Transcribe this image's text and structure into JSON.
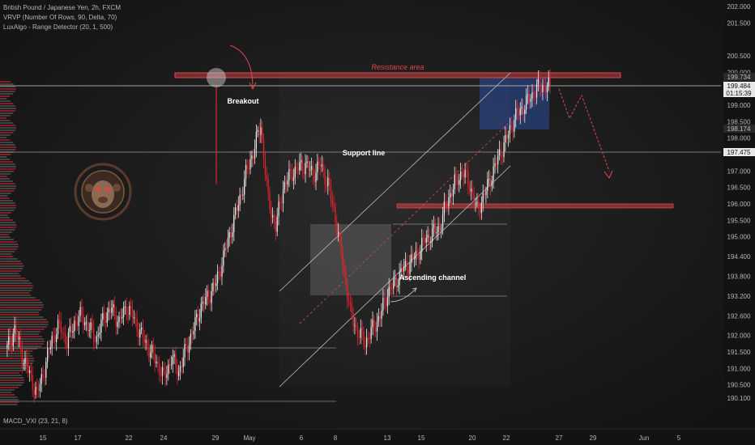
{
  "legend": {
    "line1": "British Pound / Japanese Yen, 2h, FXCM",
    "line2": "VRVP (Number Of Rows, 90, Delta, 70)",
    "line3": "LuxAlgo - Range Detector (20, 1, 500)"
  },
  "macd_label": "MACD_VXI (23, 21, 8)",
  "colors": {
    "up": "#e8e8e8",
    "down": "#e0252f",
    "resistance": "#e0474c",
    "accent_blue": "#2a4a9a"
  },
  "annotations": {
    "resistance": "Resistance area",
    "breakout": "Breakout",
    "support": "Support line",
    "channel": "Ascending channel"
  },
  "price_tags": {
    "tag_top": "199.734",
    "current": "199.484",
    "countdown": "01:15:39",
    "tag_low": "198.174",
    "support": "197.475"
  },
  "chart_data": {
    "type": "candlestick",
    "symbol": "British Pound / Japanese Yen, 2h, FXCM",
    "y_axis": {
      "ticks": [
        "202.000",
        "201.500",
        "200.500",
        "200.000",
        "199.000",
        "198.500",
        "198.000",
        "197.000",
        "196.500",
        "196.000",
        "195.500",
        "195.000",
        "194.400",
        "193.800",
        "193.200",
        "192.600",
        "192.000",
        "191.500",
        "191.000",
        "190.500",
        "190.100"
      ],
      "ylim": [
        190.0,
        202.1
      ]
    },
    "x_axis": {
      "ticks": [
        "15",
        "17",
        "22",
        "24",
        "29",
        "May",
        "6",
        "8",
        "13",
        "15",
        "20",
        "22",
        "27",
        "29",
        "Jun",
        "5"
      ]
    },
    "levels": {
      "resistance": [
        199.73,
        199.9
      ],
      "support": 197.475,
      "minor_support": 195.9,
      "current": 199.484
    },
    "series": [
      {
        "values": [
          191.6,
          192.2,
          191.4,
          190.8,
          190.2,
          191.0,
          191.9,
          192.3,
          191.8,
          192.4,
          192.6,
          192.2,
          191.9,
          192.6,
          192.8,
          192.4,
          192.9,
          192.5,
          192.0,
          191.6,
          191.2,
          190.7,
          191.3,
          190.9,
          191.6,
          192.2,
          192.9,
          193.2,
          193.6,
          194.4,
          195.2,
          196.0,
          196.9,
          197.6,
          198.4,
          196.1,
          195.3,
          196.5,
          196.9,
          197.1,
          197.2,
          196.9,
          197.2,
          196.6,
          195.6,
          194.2,
          192.7,
          192.1,
          191.8,
          192.2,
          192.6,
          193.3,
          193.6,
          194.0,
          194.2,
          194.5,
          194.9,
          195.1,
          195.3,
          196.1,
          196.6,
          197.0,
          196.6,
          195.8,
          196.3,
          196.9,
          197.5,
          198.0,
          198.6,
          198.9,
          199.2,
          199.5,
          199.6,
          199.5
        ]
      }
    ],
    "projection": [
      199.5,
      198.6,
      199.3,
      197.0
    ]
  }
}
